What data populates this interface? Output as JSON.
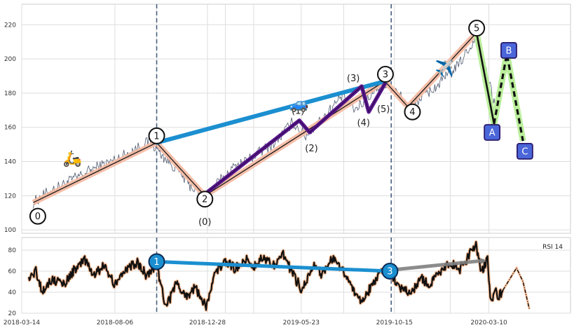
{
  "chart_data": [
    {
      "type": "line",
      "panel": "price",
      "ylim": [
        98,
        232
      ],
      "y_ticks": [
        100,
        120,
        140,
        160,
        180,
        200,
        220
      ],
      "x_ticks": [
        "2018-03-14",
        "2018-08-06",
        "2018-12-28",
        "2019-05-23",
        "2019-10-15",
        "2020-03-10"
      ],
      "xlim": [
        "2018-03-14",
        "2020-07-15"
      ],
      "grid": true,
      "vertical_markers": [
        "2018-10-10",
        "2019-10-10"
      ],
      "price_anchors": [
        {
          "x": "2018-04-01",
          "y": 116
        },
        {
          "x": "2018-04-20",
          "y": 121
        },
        {
          "x": "2018-05-15",
          "y": 126
        },
        {
          "x": "2018-06-10",
          "y": 131
        },
        {
          "x": "2018-07-05",
          "y": 136
        },
        {
          "x": "2018-08-01",
          "y": 140
        },
        {
          "x": "2018-09-01",
          "y": 146
        },
        {
          "x": "2018-10-01",
          "y": 152
        },
        {
          "x": "2018-10-20",
          "y": 143
        },
        {
          "x": "2018-11-10",
          "y": 136
        },
        {
          "x": "2018-12-01",
          "y": 126
        },
        {
          "x": "2018-12-24",
          "y": 120
        },
        {
          "x": "2019-01-15",
          "y": 128
        },
        {
          "x": "2019-02-10",
          "y": 137
        },
        {
          "x": "2019-03-10",
          "y": 143
        },
        {
          "x": "2019-04-15",
          "y": 152
        },
        {
          "x": "2019-05-10",
          "y": 163
        },
        {
          "x": "2019-05-30",
          "y": 155
        },
        {
          "x": "2019-06-25",
          "y": 165
        },
        {
          "x": "2019-07-25",
          "y": 178
        },
        {
          "x": "2019-08-15",
          "y": 170
        },
        {
          "x": "2019-09-10",
          "y": 180
        },
        {
          "x": "2019-09-30",
          "y": 187
        },
        {
          "x": "2019-10-25",
          "y": 178
        },
        {
          "x": "2019-11-05",
          "y": 172
        },
        {
          "x": "2019-11-25",
          "y": 177
        },
        {
          "x": "2019-12-20",
          "y": 184
        },
        {
          "x": "2020-01-20",
          "y": 195
        },
        {
          "x": "2020-02-19",
          "y": 212
        },
        {
          "x": "2020-03-05",
          "y": 194
        },
        {
          "x": "2020-03-22",
          "y": 170
        }
      ],
      "impulse_path": [
        {
          "x": "2018-04-01",
          "y": 116
        },
        {
          "x": "2018-10-10",
          "y": 151
        },
        {
          "x": "2018-12-24",
          "y": 120
        },
        {
          "x": "2019-09-30",
          "y": 187
        },
        {
          "x": "2019-11-05",
          "y": 172
        },
        {
          "x": "2020-02-19",
          "y": 215
        }
      ],
      "wave_labels": [
        {
          "label": "0",
          "x": "2018-04-08",
          "y": 108,
          "circled": true
        },
        {
          "label": "1",
          "x": "2018-10-10",
          "y": 155,
          "circled": true
        },
        {
          "label": "2",
          "x": "2018-12-24",
          "y": 118,
          "circled": true
        },
        {
          "label": "3",
          "x": "2019-10-01",
          "y": 191,
          "circled": true
        },
        {
          "label": "4",
          "x": "2019-11-12",
          "y": 169,
          "circled": true
        },
        {
          "label": "5",
          "x": "2020-02-20",
          "y": 218,
          "circled": true
        }
      ],
      "subwave_path": [
        {
          "x": "2018-12-24",
          "y": 121
        },
        {
          "x": "2019-05-20",
          "y": 164
        },
        {
          "x": "2019-06-05",
          "y": 157
        },
        {
          "x": "2019-08-25",
          "y": 184
        },
        {
          "x": "2019-09-05",
          "y": 169
        },
        {
          "x": "2019-10-01",
          "y": 186
        }
      ],
      "subwave_labels": [
        {
          "label": "(0)",
          "x": "2018-12-24",
          "y": 105
        },
        {
          "label": "(1)",
          "x": "2019-05-18",
          "y": 170
        },
        {
          "label": "(2)",
          "x": "2019-06-08",
          "y": 148
        },
        {
          "label": "(3)",
          "x": "2019-08-12",
          "y": 189
        },
        {
          "label": "(4)",
          "x": "2019-08-28",
          "y": 163
        },
        {
          "label": "(5)",
          "x": "2019-09-28",
          "y": 171
        }
      ],
      "trendline_blue": [
        {
          "x": "2018-10-10",
          "y": 151
        },
        {
          "x": "2019-10-01",
          "y": 187
        }
      ],
      "correction_path": [
        {
          "x": "2020-02-20",
          "y": 215
        },
        {
          "x": "2020-03-18",
          "y": 162
        },
        {
          "x": "2020-04-07",
          "y": 203
        },
        {
          "x": "2020-05-02",
          "y": 152
        }
      ],
      "correction_labels": [
        {
          "label": "A",
          "x": "2020-03-15",
          "y": 157
        },
        {
          "label": "B",
          "x": "2020-04-10",
          "y": 205
        },
        {
          "label": "C",
          "x": "2020-05-05",
          "y": 146
        }
      ],
      "emojis": [
        {
          "symbol": "🛵",
          "x": "2018-06-01",
          "y": 142
        },
        {
          "symbol": "🚙",
          "x": "2019-05-20",
          "y": 174
        },
        {
          "symbol": "✈️",
          "x": "2020-01-01",
          "y": 195
        }
      ]
    },
    {
      "type": "line",
      "panel": "rsi",
      "ylim": [
        20,
        92
      ],
      "y_ticks": [
        20,
        40,
        60,
        80
      ],
      "legend": "RSI 14",
      "rsi_anchors": [
        {
          "x": "2018-03-25",
          "y": 52
        },
        {
          "x": "2018-04-05",
          "y": 60
        },
        {
          "x": "2018-04-15",
          "y": 42
        },
        {
          "x": "2018-05-01",
          "y": 52
        },
        {
          "x": "2018-05-20",
          "y": 48
        },
        {
          "x": "2018-06-05",
          "y": 62
        },
        {
          "x": "2018-06-20",
          "y": 70
        },
        {
          "x": "2018-07-05",
          "y": 56
        },
        {
          "x": "2018-07-20",
          "y": 66
        },
        {
          "x": "2018-08-05",
          "y": 48
        },
        {
          "x": "2018-08-25",
          "y": 62
        },
        {
          "x": "2018-09-10",
          "y": 68
        },
        {
          "x": "2018-09-25",
          "y": 56
        },
        {
          "x": "2018-10-10",
          "y": 67
        },
        {
          "x": "2018-10-25",
          "y": 26
        },
        {
          "x": "2018-11-10",
          "y": 48
        },
        {
          "x": "2018-11-25",
          "y": 36
        },
        {
          "x": "2018-12-10",
          "y": 44
        },
        {
          "x": "2018-12-26",
          "y": 27
        },
        {
          "x": "2019-01-10",
          "y": 58
        },
        {
          "x": "2019-01-25",
          "y": 70
        },
        {
          "x": "2019-02-10",
          "y": 62
        },
        {
          "x": "2019-02-25",
          "y": 72
        },
        {
          "x": "2019-03-10",
          "y": 64
        },
        {
          "x": "2019-03-25",
          "y": 74
        },
        {
          "x": "2019-04-10",
          "y": 66
        },
        {
          "x": "2019-04-25",
          "y": 76
        },
        {
          "x": "2019-05-10",
          "y": 58
        },
        {
          "x": "2019-05-25",
          "y": 42
        },
        {
          "x": "2019-06-10",
          "y": 66
        },
        {
          "x": "2019-06-25",
          "y": 56
        },
        {
          "x": "2019-07-10",
          "y": 72
        },
        {
          "x": "2019-07-25",
          "y": 62
        },
        {
          "x": "2019-08-10",
          "y": 46
        },
        {
          "x": "2019-08-25",
          "y": 30
        },
        {
          "x": "2019-09-10",
          "y": 46
        },
        {
          "x": "2019-09-25",
          "y": 62
        },
        {
          "x": "2019-10-10",
          "y": 58
        },
        {
          "x": "2019-10-25",
          "y": 44
        },
        {
          "x": "2019-11-10",
          "y": 38
        },
        {
          "x": "2019-11-25",
          "y": 54
        },
        {
          "x": "2019-12-10",
          "y": 46
        },
        {
          "x": "2019-12-25",
          "y": 60
        },
        {
          "x": "2020-01-10",
          "y": 68
        },
        {
          "x": "2020-01-25",
          "y": 62
        },
        {
          "x": "2020-02-08",
          "y": 74
        },
        {
          "x": "2020-02-19",
          "y": 86
        },
        {
          "x": "2020-02-28",
          "y": 60
        },
        {
          "x": "2020-03-08",
          "y": 70
        },
        {
          "x": "2020-03-14",
          "y": 28
        },
        {
          "x": "2020-03-20",
          "y": 44
        },
        {
          "x": "2020-03-26",
          "y": 36
        },
        {
          "x": "2020-04-01",
          "y": 42
        }
      ],
      "rsi_projection": [
        {
          "x": "2020-04-01",
          "y": 42
        },
        {
          "x": "2020-04-22",
          "y": 63
        },
        {
          "x": "2020-05-02",
          "y": 50
        },
        {
          "x": "2020-05-12",
          "y": 24
        }
      ],
      "divergence_blue": [
        {
          "x": "2018-10-10",
          "y": 69
        },
        {
          "x": "2019-10-08",
          "y": 60
        }
      ],
      "divergence_gray": [
        {
          "x": "2019-10-08",
          "y": 61
        },
        {
          "x": "2020-03-01",
          "y": 70
        }
      ],
      "wave_labels": [
        {
          "label": "1",
          "x": "2018-10-10",
          "y": 69
        },
        {
          "label": "3",
          "x": "2019-10-08",
          "y": 60
        }
      ]
    }
  ]
}
